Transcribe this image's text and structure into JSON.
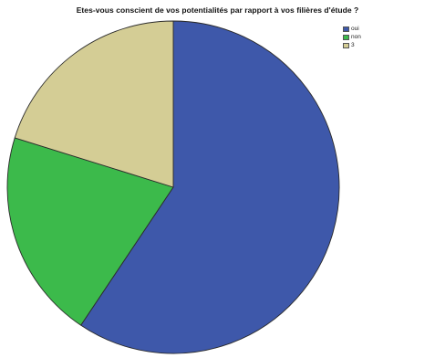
{
  "chart_data": {
    "type": "pie",
    "title": "Etes-vous conscient de vos potentialités par rapport à vos filières d'étude ?",
    "categories": [
      "oui",
      "non",
      "3"
    ],
    "values": [
      59.4,
      20.4,
      20.2
    ],
    "colors": [
      "#3e58aa",
      "#3cba4b",
      "#d4cd95"
    ],
    "legend_position": "top-right"
  }
}
